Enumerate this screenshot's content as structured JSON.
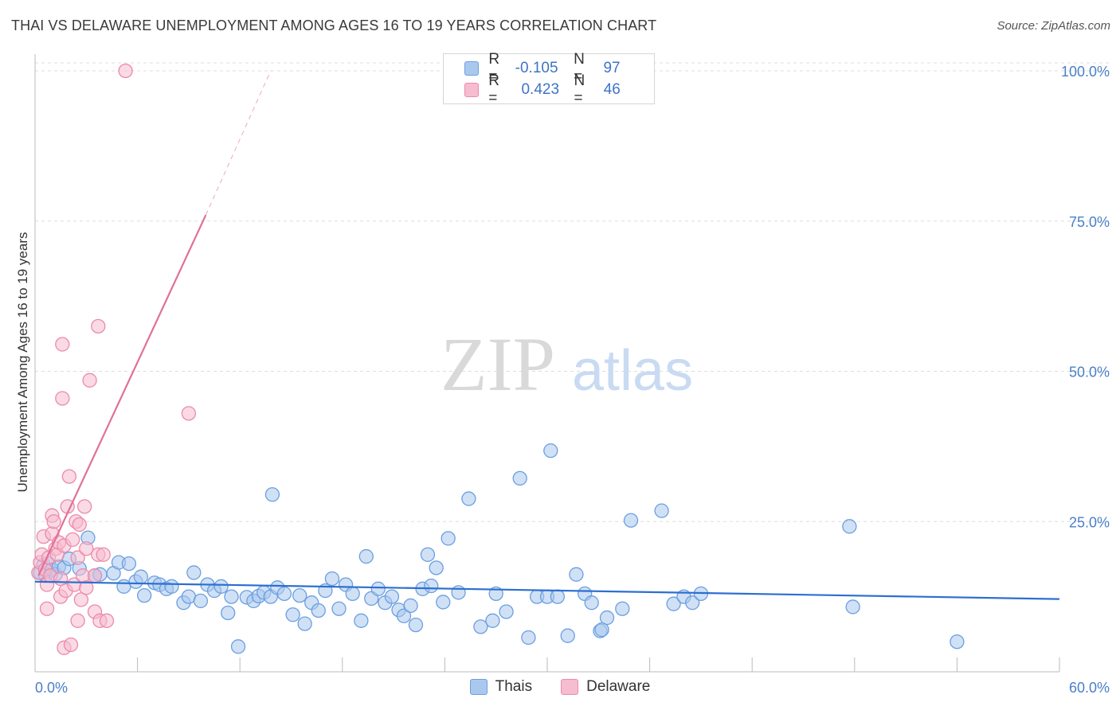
{
  "title": "THAI VS DELAWARE UNEMPLOYMENT AMONG AGES 16 TO 19 YEARS CORRELATION CHART",
  "source": "Source: ZipAtlas.com",
  "watermark": {
    "zip": "ZIP",
    "atlas": "atlas"
  },
  "colors": {
    "thais_fill": "#aac8ee",
    "thais_stroke": "#6b9fe0",
    "thais_line": "#2d6fd0",
    "delaware_fill": "#f6bccf",
    "delaware_stroke": "#ec8aaa",
    "delaware_line": "#e0709a",
    "grid": "#dddddd",
    "tick_label": "#4a7fc8"
  },
  "legend": {
    "rows": [
      {
        "r_label": "R =",
        "r_value": "-0.105",
        "n_label": "N =",
        "n_value": "97"
      },
      {
        "r_label": "R =",
        "r_value": "0.423",
        "n_label": "N =",
        "n_value": "46"
      }
    ]
  },
  "chart_data": {
    "type": "scatter",
    "title": "THAI VS DELAWARE UNEMPLOYMENT AMONG AGES 16 TO 19 YEARS CORRELATION CHART",
    "xlabel": "",
    "ylabel": "Unemployment Among Ages 16 to 19 years",
    "xlim": [
      0,
      60
    ],
    "ylim": [
      0,
      100
    ],
    "x_tick_labels": [
      "0.0%",
      "60.0%"
    ],
    "y_tick_labels": [
      "100.0%",
      "75.0%",
      "50.0%",
      "25.0%"
    ],
    "y_ticks": [
      100,
      75,
      50,
      25
    ],
    "grid": true,
    "legend_position": "top-center",
    "series": [
      {
        "name": "Thais",
        "r": -0.105,
        "n": 97,
        "trend": {
          "x": [
            0,
            60
          ],
          "y": [
            15.0,
            12.1
          ]
        },
        "points": [
          [
            0.3,
            16.5
          ],
          [
            0.5,
            17.8
          ],
          [
            0.6,
            16.0
          ],
          [
            0.8,
            18.0
          ],
          [
            1.0,
            17.0
          ],
          [
            1.2,
            16.2
          ],
          [
            1.4,
            17.5
          ],
          [
            1.7,
            17.3
          ],
          [
            2.0,
            18.8
          ],
          [
            2.6,
            17.2
          ],
          [
            3.1,
            22.3
          ],
          [
            3.5,
            16.0
          ],
          [
            3.8,
            16.2
          ],
          [
            4.6,
            16.4
          ],
          [
            4.9,
            18.2
          ],
          [
            5.2,
            14.2
          ],
          [
            5.5,
            18.0
          ],
          [
            5.9,
            15.0
          ],
          [
            6.2,
            15.8
          ],
          [
            6.4,
            12.7
          ],
          [
            7.0,
            14.8
          ],
          [
            7.3,
            14.5
          ],
          [
            7.7,
            13.8
          ],
          [
            8.0,
            14.2
          ],
          [
            8.7,
            11.5
          ],
          [
            9.0,
            12.5
          ],
          [
            9.3,
            16.5
          ],
          [
            9.7,
            11.8
          ],
          [
            10.1,
            14.5
          ],
          [
            10.5,
            13.5
          ],
          [
            10.9,
            14.2
          ],
          [
            11.3,
            9.8
          ],
          [
            11.5,
            12.5
          ],
          [
            11.9,
            4.2
          ],
          [
            12.4,
            12.4
          ],
          [
            12.8,
            11.8
          ],
          [
            13.1,
            12.6
          ],
          [
            13.4,
            13.2
          ],
          [
            13.8,
            12.5
          ],
          [
            14.2,
            14.0
          ],
          [
            13.9,
            29.5
          ],
          [
            14.6,
            13.0
          ],
          [
            15.1,
            9.5
          ],
          [
            15.5,
            12.7
          ],
          [
            15.8,
            8.0
          ],
          [
            16.2,
            11.5
          ],
          [
            16.6,
            10.2
          ],
          [
            17.0,
            13.5
          ],
          [
            17.4,
            15.5
          ],
          [
            17.8,
            10.5
          ],
          [
            18.2,
            14.5
          ],
          [
            18.6,
            13.0
          ],
          [
            19.1,
            8.5
          ],
          [
            19.4,
            19.2
          ],
          [
            19.7,
            12.2
          ],
          [
            20.1,
            13.8
          ],
          [
            20.5,
            11.5
          ],
          [
            20.9,
            12.5
          ],
          [
            21.3,
            10.3
          ],
          [
            21.6,
            9.3
          ],
          [
            22.0,
            11.0
          ],
          [
            22.3,
            7.8
          ],
          [
            22.7,
            13.8
          ],
          [
            23.0,
            19.5
          ],
          [
            23.2,
            14.3
          ],
          [
            23.5,
            17.3
          ],
          [
            23.9,
            11.6
          ],
          [
            24.2,
            22.2
          ],
          [
            24.8,
            13.2
          ],
          [
            25.4,
            28.8
          ],
          [
            26.1,
            7.5
          ],
          [
            26.8,
            8.5
          ],
          [
            27.0,
            13.0
          ],
          [
            27.6,
            10.0
          ],
          [
            28.4,
            32.2
          ],
          [
            28.9,
            5.7
          ],
          [
            29.4,
            12.5
          ],
          [
            30.0,
            12.5
          ],
          [
            30.2,
            36.8
          ],
          [
            30.6,
            12.5
          ],
          [
            31.2,
            6.0
          ],
          [
            31.7,
            16.2
          ],
          [
            32.2,
            13.0
          ],
          [
            32.6,
            11.5
          ],
          [
            33.1,
            6.8
          ],
          [
            33.5,
            9.0
          ],
          [
            33.2,
            7.0
          ],
          [
            34.4,
            10.5
          ],
          [
            34.9,
            25.2
          ],
          [
            36.7,
            26.8
          ],
          [
            37.4,
            11.3
          ],
          [
            38.0,
            12.5
          ],
          [
            38.5,
            11.5
          ],
          [
            39.0,
            13.0
          ],
          [
            47.7,
            24.2
          ],
          [
            47.9,
            10.8
          ],
          [
            54.0,
            5.0
          ]
        ]
      },
      {
        "name": "Delaware",
        "r": 0.423,
        "n": 46,
        "trend": {
          "x": [
            0.2,
            10.0
          ],
          "y": [
            16.0,
            76.0
          ]
        },
        "trend_extension": {
          "x": [
            10.0,
            13.8
          ],
          "y": [
            76.0,
            100.0
          ]
        },
        "points": [
          [
            0.2,
            16.5
          ],
          [
            0.3,
            18.2
          ],
          [
            0.4,
            19.5
          ],
          [
            0.5,
            22.5
          ],
          [
            0.6,
            17.0
          ],
          [
            0.7,
            10.5
          ],
          [
            0.7,
            14.5
          ],
          [
            0.8,
            19.0
          ],
          [
            0.9,
            16.0
          ],
          [
            1.0,
            23.0
          ],
          [
            1.0,
            26.0
          ],
          [
            1.1,
            25.0
          ],
          [
            1.2,
            20.5
          ],
          [
            1.3,
            19.5
          ],
          [
            1.4,
            21.5
          ],
          [
            1.5,
            15.5
          ],
          [
            1.5,
            12.5
          ],
          [
            1.6,
            54.5
          ],
          [
            1.6,
            45.5
          ],
          [
            1.7,
            4.0
          ],
          [
            1.7,
            21.0
          ],
          [
            1.8,
            13.5
          ],
          [
            1.9,
            27.5
          ],
          [
            2.0,
            32.5
          ],
          [
            2.1,
            4.5
          ],
          [
            2.2,
            22.0
          ],
          [
            2.3,
            14.5
          ],
          [
            2.4,
            25.0
          ],
          [
            2.5,
            8.5
          ],
          [
            2.5,
            19.0
          ],
          [
            2.6,
            24.5
          ],
          [
            2.7,
            12.0
          ],
          [
            2.8,
            16.0
          ],
          [
            2.9,
            27.5
          ],
          [
            3.0,
            20.5
          ],
          [
            3.0,
            14.0
          ],
          [
            3.2,
            48.5
          ],
          [
            3.5,
            16.0
          ],
          [
            3.5,
            10.0
          ],
          [
            3.7,
            19.5
          ],
          [
            3.7,
            57.5
          ],
          [
            3.8,
            8.5
          ],
          [
            4.0,
            19.5
          ],
          [
            4.2,
            8.5
          ],
          [
            5.3,
            100.0
          ],
          [
            9.0,
            43.0
          ]
        ]
      }
    ]
  }
}
